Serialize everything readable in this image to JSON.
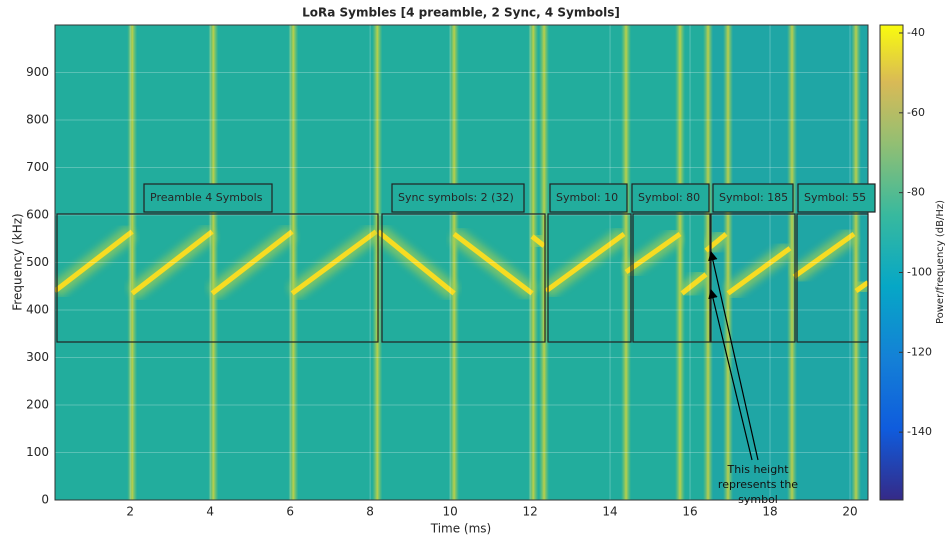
{
  "chart_data": {
    "type": "spectrogram",
    "title": "LoRa Symbles [4 preamble, 2 Sync, 4 Symbols]",
    "xlabel": "Time (ms)",
    "ylabel": "Frequency (kHz)",
    "xlim": [
      0.12,
      20.45
    ],
    "xticks": [
      2,
      4,
      6,
      8,
      10,
      12,
      14,
      16,
      18,
      20
    ],
    "ylim": [
      0,
      1000
    ],
    "yticks": [
      0,
      100,
      200,
      300,
      400,
      500,
      600,
      700,
      800,
      900
    ],
    "grid": true,
    "background_color": "#22ad9d",
    "chirp_color": "#f7dc22",
    "chirps": {
      "t0": [
        0.12,
        2.05,
        4.05,
        6.05,
        8.2,
        10.1,
        12.05,
        12.4,
        14.4,
        15.8,
        16.4,
        16.95,
        18.6,
        20.15
      ],
      "t1": [
        2.05,
        4.05,
        6.05,
        8.15,
        10.1,
        12.05,
        12.35,
        14.35,
        15.75,
        16.4,
        16.9,
        18.5,
        20.1,
        20.45
      ],
      "f0": [
        440,
        435,
        435,
        435,
        565,
        560,
        555,
        440,
        480,
        435,
        525,
        435,
        470,
        440
      ],
      "f1": [
        565,
        565,
        565,
        565,
        435,
        435,
        535,
        560,
        560,
        475,
        560,
        530,
        560,
        458
      ]
    },
    "transients": [
      2.05,
      4.08,
      6.08,
      8.18,
      10.1,
      12.08,
      12.35,
      14.4,
      15.75,
      16.45,
      16.95,
      18.55,
      20.15
    ],
    "clim": [
      -157,
      -38
    ],
    "cticks": [
      -140,
      -120,
      -100,
      -80,
      -60,
      -40
    ],
    "colorbar_label": "Power/frequency (dB/Hz)",
    "box_labels": [
      "Preamble 4 Symbols",
      "Sync symbols: 2 (32)",
      "Symbol: 10",
      "Symbol: 80",
      "Symbol: 185",
      "Symbol: 55"
    ],
    "annotation": "This height represents the symbol"
  }
}
